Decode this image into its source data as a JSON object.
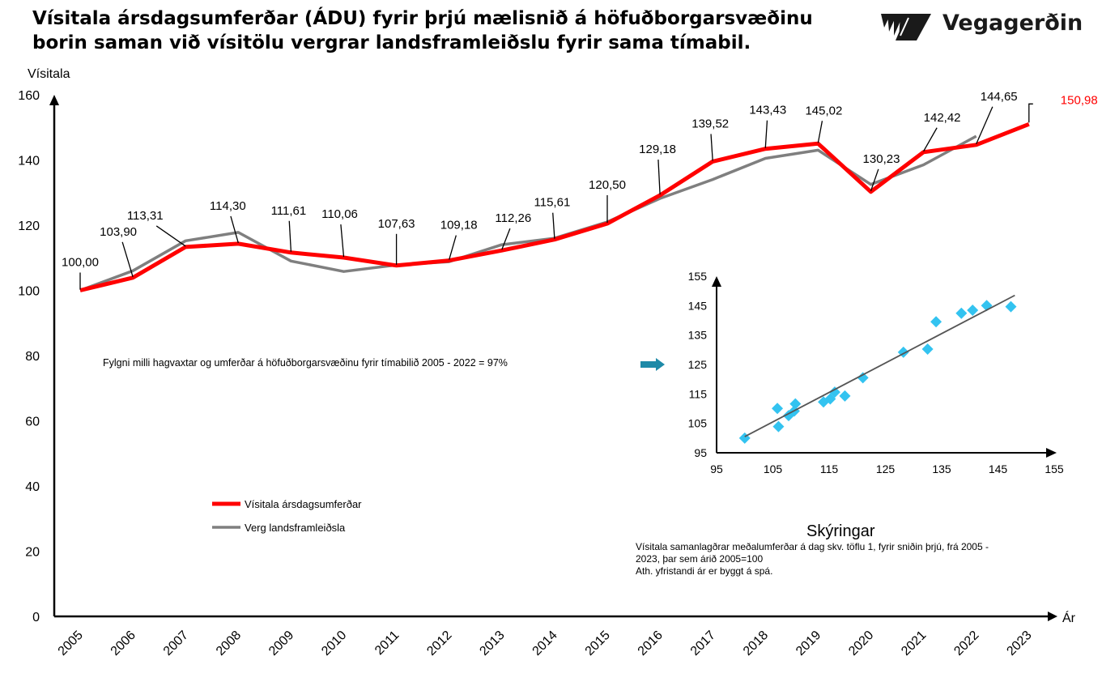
{
  "header": {
    "title_line1": "Vísitala ársdagsumferðar (ÁDU) fyrir þrjú mælisnið á höfuðborgarsvæðinu",
    "title_line2": "borin saman við vísitölu vergrar landsframleiðslu fyrir sama tímabil.",
    "brand_name": "Vegagerðin"
  },
  "colors": {
    "traffic": "#ff0000",
    "gdp": "#7f7f7f",
    "scatter_point": "#33c3f0",
    "arrow": "#1e8aa8",
    "axis": "#000000"
  },
  "chart_data": [
    {
      "type": "line",
      "ylabel": "Vísitala",
      "xlabel": "Ár",
      "ylim": [
        0,
        160
      ],
      "yticks": [
        0,
        20,
        40,
        60,
        80,
        100,
        120,
        140,
        160
      ],
      "categories": [
        "2005",
        "2006",
        "2007",
        "2008",
        "2009",
        "2010",
        "2011",
        "2012",
        "2013",
        "2014",
        "2015",
        "2016",
        "2017",
        "2018",
        "2019",
        "2020",
        "2021",
        "2022",
        "2023"
      ],
      "series": [
        {
          "name": "Vísitala ársdagsumferðar",
          "color": "#ff0000",
          "values": [
            100.0,
            103.9,
            113.31,
            114.3,
            111.61,
            110.06,
            107.63,
            109.18,
            112.26,
            115.61,
            120.5,
            129.18,
            139.52,
            143.43,
            145.02,
            130.23,
            142.42,
            144.65,
            150.98
          ],
          "labels": [
            "100,00",
            "103,90",
            "113,31",
            "114,30",
            "111,61",
            "110,06",
            "107,63",
            "109,18",
            "112,26",
            "115,61",
            "120,50",
            "129,18",
            "139,52",
            "143,43",
            "145,02",
            "130,23",
            "142,42",
            "144,65",
            "150,98"
          ]
        },
        {
          "name": "Verg landsframleiðsla",
          "color": "#7f7f7f",
          "values": [
            100.0,
            106.0,
            115.2,
            117.8,
            109.0,
            105.8,
            107.8,
            108.8,
            114.0,
            116.0,
            121.0,
            128.2,
            134.0,
            140.5,
            143.0,
            132.5,
            138.5,
            147.3,
            null
          ]
        }
      ],
      "legend": "bottom-left",
      "annotation": "Fylgni milli hagvaxtar og umferðar á höfuðborgarsvæðinu fyrir tímabilið 2005 - 2022 = 97%",
      "note_title": "Skýringar",
      "note_lines": [
        "Vísitala samanlagðrar meðalumferðar á dag  skv. töflu 1, fyrir sniðin  þrjú, frá 2005 -",
        "2023, þar sem árið 2005=100",
        "Ath. yfristandi ár er byggt á spá."
      ]
    },
    {
      "type": "scatter",
      "xlim": [
        95,
        155
      ],
      "ylim": [
        95,
        155
      ],
      "xticks": [
        95,
        105,
        115,
        125,
        135,
        145,
        155
      ],
      "yticks": [
        95,
        105,
        115,
        125,
        135,
        145,
        155
      ],
      "points": [
        [
          100.0,
          100.0
        ],
        [
          106.0,
          103.9
        ],
        [
          115.2,
          113.31
        ],
        [
          117.8,
          114.3
        ],
        [
          109.0,
          111.61
        ],
        [
          105.8,
          110.06
        ],
        [
          107.8,
          107.63
        ],
        [
          108.8,
          109.18
        ],
        [
          114.0,
          112.26
        ],
        [
          116.0,
          115.61
        ],
        [
          121.0,
          120.5
        ],
        [
          128.2,
          129.18
        ],
        [
          134.0,
          139.52
        ],
        [
          140.5,
          143.43
        ],
        [
          143.0,
          145.02
        ],
        [
          132.5,
          130.23
        ],
        [
          138.5,
          142.42
        ],
        [
          147.3,
          144.65
        ]
      ],
      "trendline": [
        [
          100,
          100.5
        ],
        [
          148,
          148.5
        ]
      ]
    }
  ]
}
